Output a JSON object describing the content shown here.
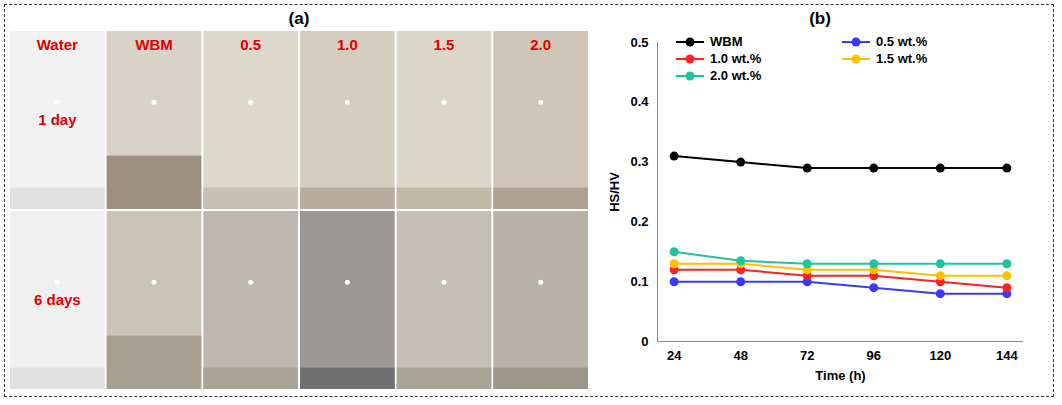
{
  "photo_panel": {
    "title": "(a)",
    "columns": [
      "Water",
      "WBM",
      "0.5",
      "1.0",
      "1.5",
      "2.0"
    ],
    "rows": [
      "1 day",
      "6 days"
    ]
  },
  "chart_data": {
    "type": "line",
    "title": "(b)",
    "xlabel": "Time (h)",
    "ylabel": "HS/HV",
    "x": [
      24,
      48,
      72,
      96,
      120,
      144
    ],
    "series": [
      {
        "name": "WBM",
        "color": "#000000",
        "values": [
          0.31,
          0.3,
          0.29,
          0.29,
          0.29,
          0.29
        ]
      },
      {
        "name": "0.5 wt.%",
        "color": "#3a3aff",
        "values": [
          0.1,
          0.1,
          0.1,
          0.09,
          0.08,
          0.08
        ]
      },
      {
        "name": "1.0 wt.%",
        "color": "#ff2020",
        "values": [
          0.12,
          0.12,
          0.11,
          0.11,
          0.1,
          0.09
        ]
      },
      {
        "name": "1.5 wt.%",
        "color": "#ffc000",
        "values": [
          0.13,
          0.13,
          0.12,
          0.12,
          0.11,
          0.11
        ]
      },
      {
        "name": "2.0 wt.%",
        "color": "#1fc3a0",
        "values": [
          0.15,
          0.135,
          0.13,
          0.13,
          0.13,
          0.13
        ]
      }
    ],
    "xlim": [
      18,
      150
    ],
    "xticks": [
      24,
      48,
      72,
      96,
      120,
      144
    ],
    "ylim": [
      0,
      0.5
    ],
    "yticks": [
      0,
      0.1,
      0.2,
      0.3,
      0.4,
      0.5
    ],
    "grid": false,
    "legend": "top",
    "marker": "circle"
  }
}
